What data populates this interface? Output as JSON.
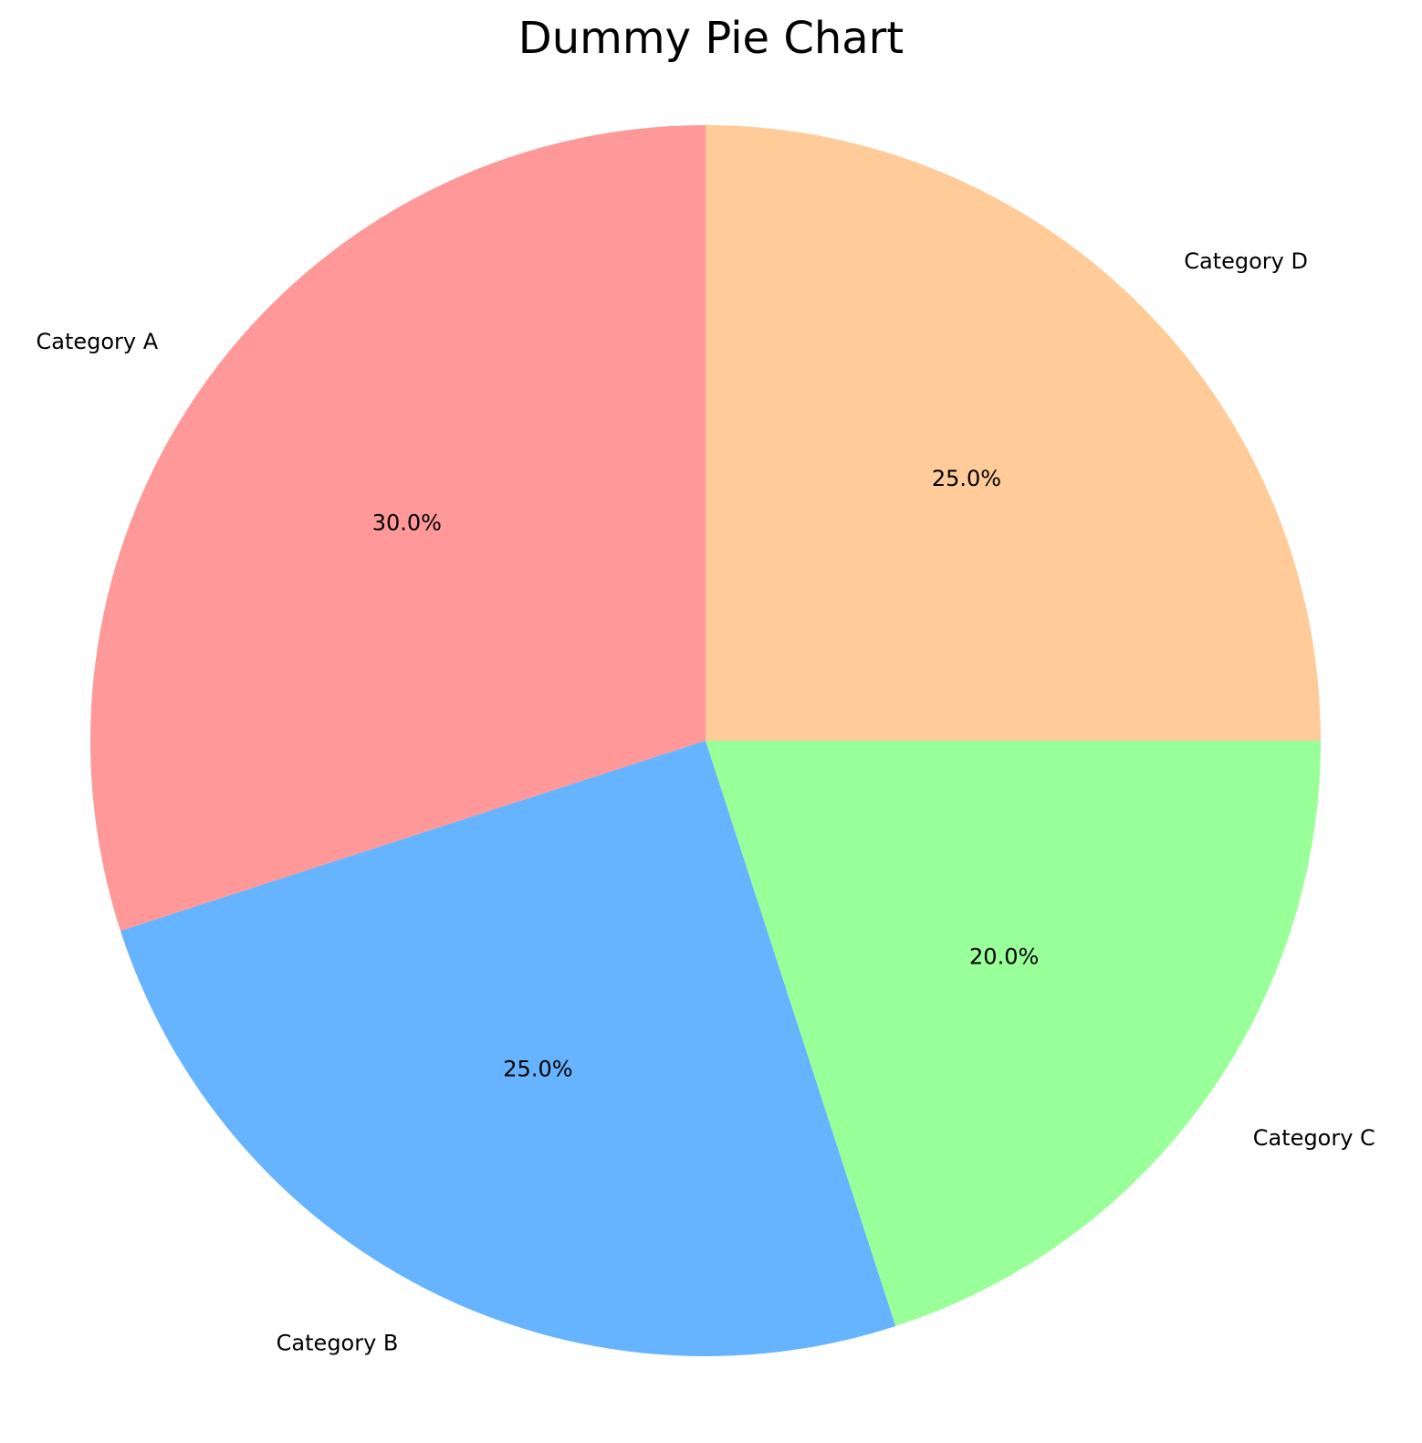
{
  "chart_data": {
    "type": "pie",
    "title": "Dummy Pie Chart",
    "categories": [
      "Category A",
      "Category B",
      "Category C",
      "Category D"
    ],
    "values": [
      30,
      25,
      20,
      25
    ],
    "percent_labels": [
      "30.0%",
      "25.0%",
      "20.0%",
      "25.0%"
    ],
    "colors": [
      "#ff9999",
      "#66b3ff",
      "#99ff99",
      "#ffcc99"
    ],
    "start_angle_deg": 90,
    "direction": "counterclockwise"
  }
}
